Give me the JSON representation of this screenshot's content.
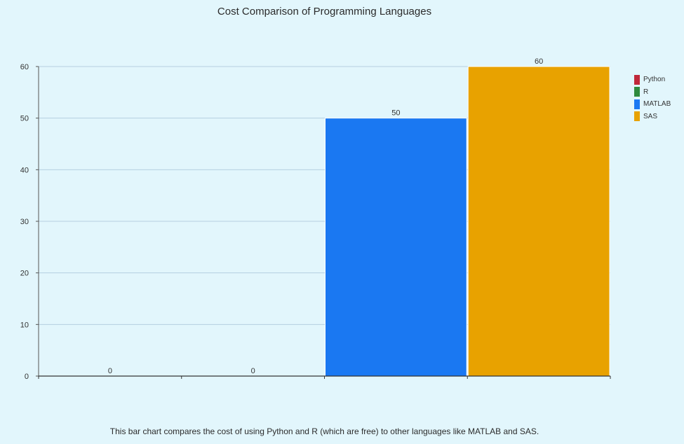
{
  "chart_data": {
    "type": "bar",
    "title": "Cost Comparison of Programming Languages",
    "categories": [
      "Python",
      "R",
      "MATLAB",
      "SAS"
    ],
    "values": [
      0,
      0,
      50,
      60
    ],
    "colors": [
      "#c0283a",
      "#2e8b3e",
      "#1a78f2",
      "#e8a200"
    ],
    "ylim": [
      0,
      60
    ],
    "yticks": [
      "0",
      "10",
      "20",
      "30",
      "40",
      "50",
      "60"
    ],
    "legend": [
      "Python",
      "R",
      "MATLAB",
      "SAS"
    ],
    "legend_position": "right",
    "grid": true,
    "caption": "This bar chart compares the cost of using Python and R (which are free) to other languages like MATLAB and SAS."
  }
}
